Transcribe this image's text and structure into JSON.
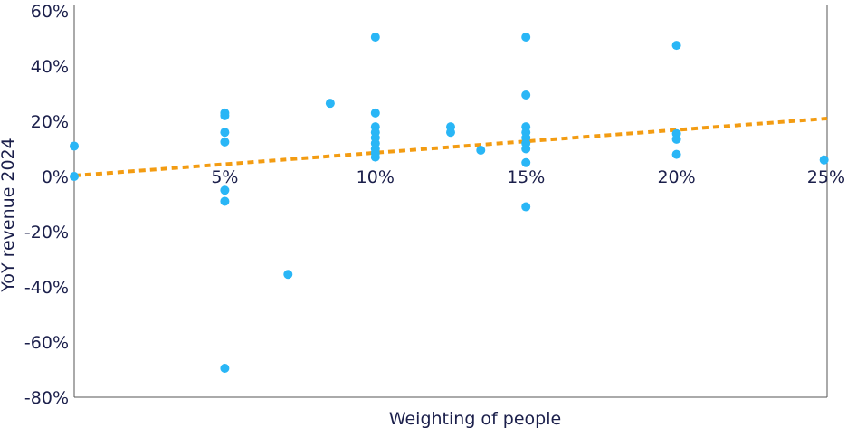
{
  "chart_data": {
    "type": "scatter",
    "title": "",
    "xlabel": "Weighting of people",
    "ylabel": "YoY revenue 2024",
    "xlim": [
      0,
      25
    ],
    "ylim": [
      -80,
      60
    ],
    "x_ticks": [
      {
        "value": 5,
        "label": "5%"
      },
      {
        "value": 10,
        "label": "10%"
      },
      {
        "value": 15,
        "label": "15%"
      },
      {
        "value": 20,
        "label": "20%"
      },
      {
        "value": 25,
        "label": "25%"
      }
    ],
    "y_ticks": [
      {
        "value": 60,
        "label": "60%"
      },
      {
        "value": 40,
        "label": "40%"
      },
      {
        "value": 20,
        "label": "20%"
      },
      {
        "value": 0,
        "label": "0%"
      },
      {
        "value": -20,
        "label": "-20%"
      },
      {
        "value": -40,
        "label": "-40%"
      },
      {
        "value": -60,
        "label": "-60%"
      },
      {
        "value": -80,
        "label": "-80%"
      }
    ],
    "grid": false,
    "points": [
      {
        "x": 0,
        "y": 11
      },
      {
        "x": 0,
        "y": 0
      },
      {
        "x": 5,
        "y": 23
      },
      {
        "x": 5,
        "y": 22
      },
      {
        "x": 5,
        "y": 16
      },
      {
        "x": 5,
        "y": 12.5
      },
      {
        "x": 5,
        "y": -5
      },
      {
        "x": 5,
        "y": -9
      },
      {
        "x": 5,
        "y": -69.5
      },
      {
        "x": 7.1,
        "y": -35.5
      },
      {
        "x": 8.5,
        "y": 26.5
      },
      {
        "x": 10,
        "y": 50.5
      },
      {
        "x": 10,
        "y": 23
      },
      {
        "x": 10,
        "y": 18
      },
      {
        "x": 10,
        "y": 16
      },
      {
        "x": 10,
        "y": 14
      },
      {
        "x": 10,
        "y": 12
      },
      {
        "x": 10,
        "y": 10
      },
      {
        "x": 10,
        "y": 8.5
      },
      {
        "x": 10,
        "y": 7
      },
      {
        "x": 12.5,
        "y": 18
      },
      {
        "x": 12.5,
        "y": 16
      },
      {
        "x": 13.5,
        "y": 9.5
      },
      {
        "x": 15,
        "y": 50.5
      },
      {
        "x": 15,
        "y": 29.5
      },
      {
        "x": 15,
        "y": 18
      },
      {
        "x": 15,
        "y": 16
      },
      {
        "x": 15,
        "y": 14
      },
      {
        "x": 15,
        "y": 12
      },
      {
        "x": 15,
        "y": 10
      },
      {
        "x": 15,
        "y": 5
      },
      {
        "x": 15,
        "y": -11
      },
      {
        "x": 20,
        "y": 47.5
      },
      {
        "x": 20,
        "y": 15.5
      },
      {
        "x": 20,
        "y": 13.5
      },
      {
        "x": 20,
        "y": 8
      },
      {
        "x": 24.9,
        "y": 6
      }
    ],
    "trendline": {
      "style": "dotted",
      "x": [
        0,
        25
      ],
      "y": [
        0.3,
        21
      ]
    },
    "colors": {
      "points": "#29b6f6",
      "trendline": "#f39c12",
      "axis": "#555555",
      "text": "#1b1f4b"
    }
  }
}
